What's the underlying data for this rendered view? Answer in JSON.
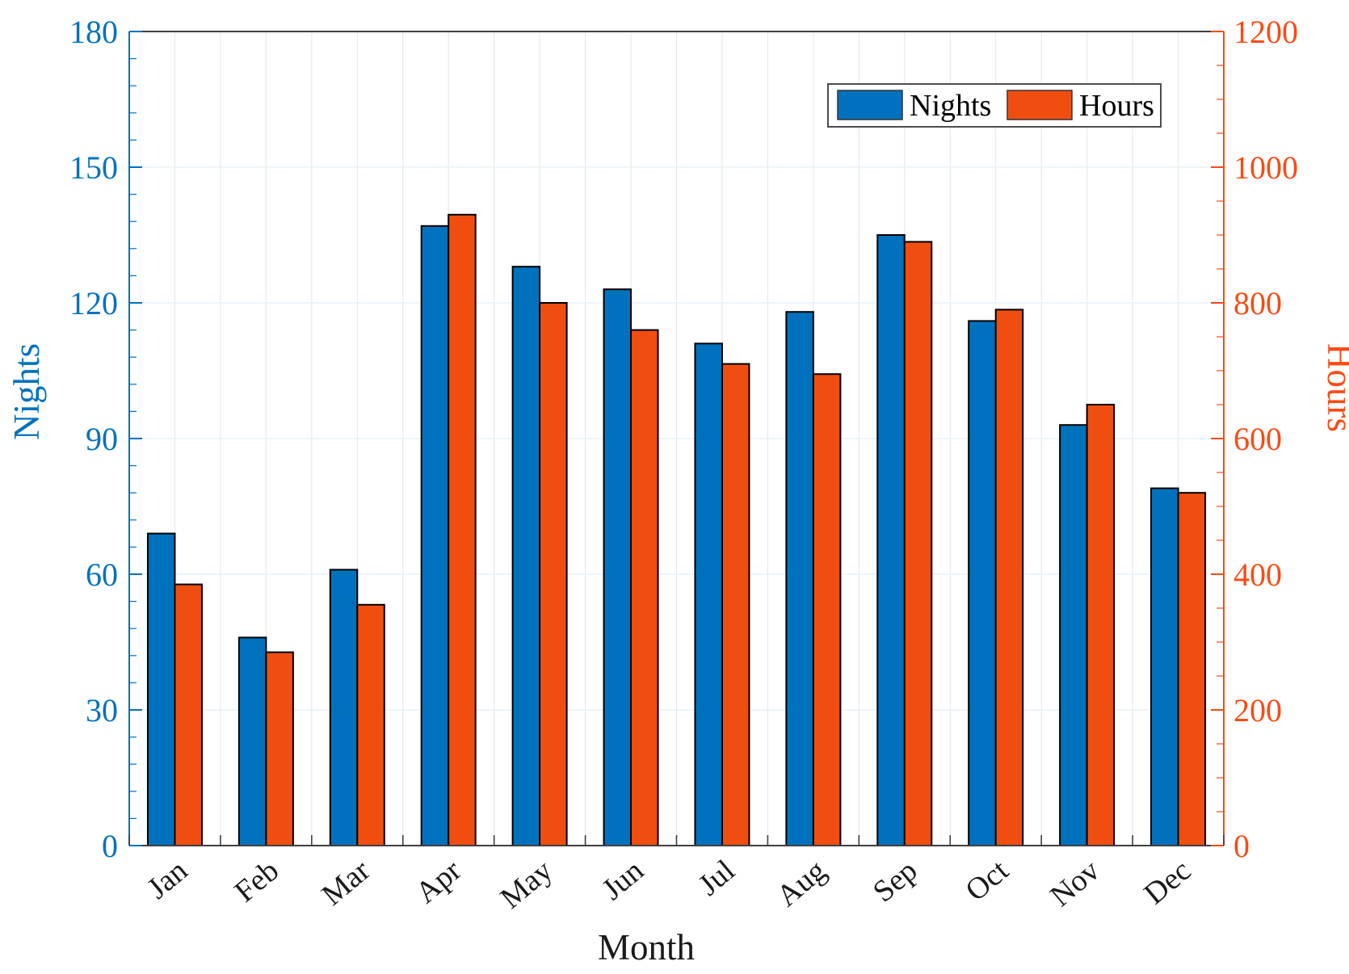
{
  "chart_data": {
    "type": "bar",
    "title": "",
    "categories": [
      "Jan",
      "Feb",
      "Mar",
      "Apr",
      "May",
      "Jun",
      "Jul",
      "Aug",
      "Sep",
      "Oct",
      "Nov",
      "Dec"
    ],
    "series": [
      {
        "name": "Nights",
        "axis": "left",
        "color": "#0072BD",
        "values": [
          69,
          46,
          61,
          137,
          128,
          123,
          111,
          118,
          135,
          116,
          93,
          79
        ]
      },
      {
        "name": "Hours",
        "axis": "right",
        "color": "#F04E11",
        "values": [
          385,
          285,
          355,
          930,
          800,
          760,
          710,
          695,
          890,
          790,
          650,
          520
        ]
      }
    ],
    "left_axis": {
      "label": "Nights",
      "min": 0,
      "max": 180,
      "ticks": [
        0,
        30,
        60,
        90,
        120,
        150,
        180
      ],
      "minor_step": 6,
      "color": "#0072BD"
    },
    "right_axis": {
      "label": "Hours",
      "min": 0,
      "max": 1200,
      "ticks": [
        0,
        200,
        400,
        600,
        800,
        1000,
        1200
      ],
      "minor_step": 50,
      "color": "#FB4A12"
    },
    "x_axis": {
      "label": "Month",
      "tick_label_rotation": -40,
      "text_color": "#1a1a1a",
      "spine_color": "#3f3f3f"
    },
    "legend": {
      "position": "top-right",
      "entries": [
        "Nights",
        "Hours"
      ],
      "border_color": "#4d4d4d",
      "background": "#ffffff"
    },
    "grid": {
      "horizontal": true,
      "vertical": true,
      "h_color": "#e2eef9",
      "v_color": "#e4e4e4"
    },
    "bar_edge_color": "#000000",
    "background_color": "#ffffff"
  }
}
